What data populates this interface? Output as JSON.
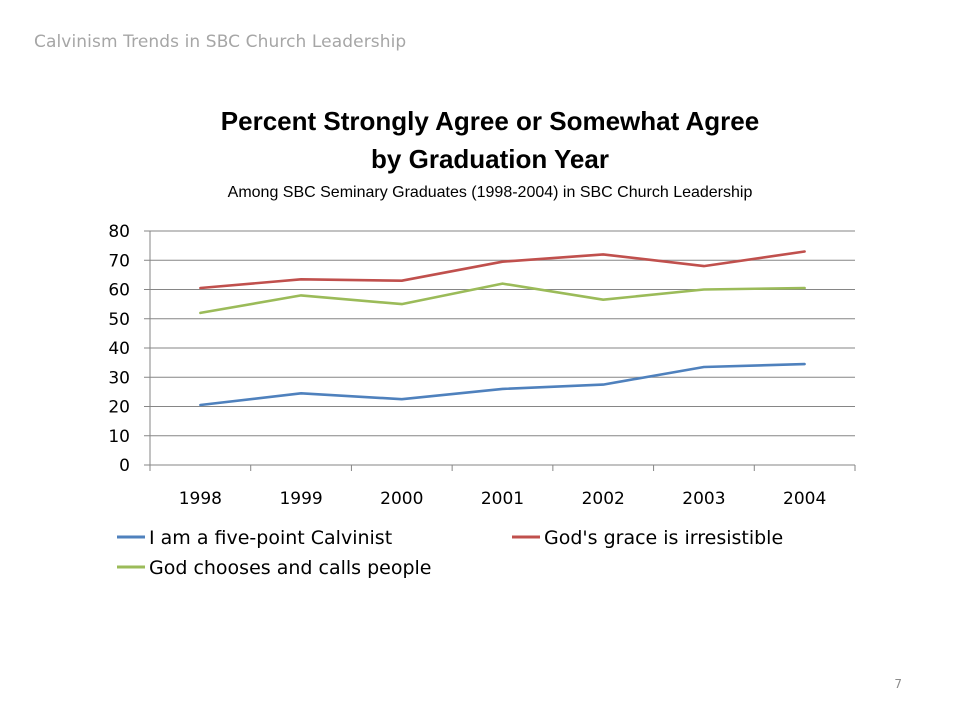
{
  "slide": {
    "header": "Calvinism Trends in SBC Church Leadership",
    "page_number": "7"
  },
  "chart_data": {
    "type": "line",
    "title_line1": "Percent Strongly Agree or Somewhat Agree",
    "title_line2": "by Graduation Year",
    "subtitle": "Among SBC Seminary Graduates (1998-2004) in SBC Church Leadership",
    "categories": [
      "1998",
      "1999",
      "2000",
      "2001",
      "2002",
      "2003",
      "2004"
    ],
    "ylim": [
      0,
      80
    ],
    "yticks": [
      0,
      10,
      20,
      30,
      40,
      50,
      60,
      70,
      80
    ],
    "grid": true,
    "legend_position": "bottom",
    "series": [
      {
        "name": "I am a five-point Calvinist",
        "color": "#4f81bd",
        "values": [
          20.5,
          24.5,
          22.5,
          26,
          27.5,
          33.5,
          34.5
        ]
      },
      {
        "name": "God's grace is irresistible",
        "color": "#c0504d",
        "values": [
          60.5,
          63.5,
          63,
          69.5,
          72,
          68,
          73
        ]
      },
      {
        "name": "God chooses and calls people",
        "color": "#9bbb59",
        "values": [
          52,
          58,
          55,
          62,
          56.5,
          60,
          60.5
        ]
      }
    ]
  }
}
